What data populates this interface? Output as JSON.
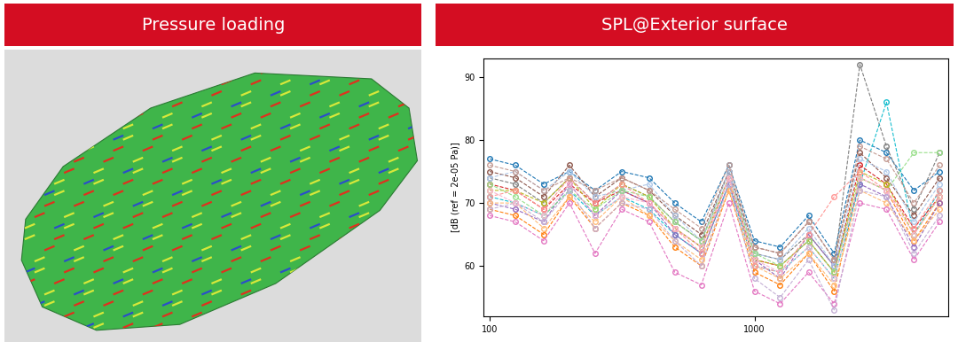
{
  "chart_data": [
    {
      "type": "image",
      "title": "Pressure loading"
    },
    {
      "type": "line",
      "title": "SPL@Exterior surface",
      "y_label": "[dB (ref = 2e-05 Pa)]",
      "log": "x",
      "grid": false,
      "marker": "o",
      "line_style": "dashed",
      "x": [
        100,
        125,
        160,
        200,
        250,
        315,
        400,
        500,
        630,
        800,
        1000,
        1250,
        1600,
        2000,
        2500,
        3150,
        4000,
        5000
      ],
      "xlim": [
        95,
        5400
      ],
      "xticks": [
        100,
        1000
      ],
      "ylim": [
        52,
        93
      ],
      "yticks": [
        60,
        70,
        80,
        90
      ],
      "series": [
        {
          "color": "#1f77b4",
          "values": [
            77,
            76,
            73,
            75,
            72,
            75,
            74,
            70,
            67,
            76,
            64,
            63,
            68,
            62,
            80,
            78,
            72,
            75
          ]
        },
        {
          "color": "#ff7f0e",
          "values": [
            69,
            68,
            65,
            71,
            66,
            70,
            68,
            63,
            60,
            72,
            59,
            57,
            62,
            56,
            74,
            72,
            64,
            70
          ]
        },
        {
          "color": "#7f7f7f",
          "values": [
            74,
            73,
            70,
            74,
            70,
            73,
            71,
            67,
            64,
            75,
            62,
            61,
            65,
            60,
            92,
            79,
            69,
            78
          ]
        },
        {
          "color": "#17becf",
          "values": [
            71,
            70,
            68,
            72,
            68,
            71,
            69,
            65,
            62,
            73,
            60,
            59,
            63,
            58,
            73,
            86,
            65,
            72
          ]
        },
        {
          "color": "#d62728",
          "values": [
            73,
            72,
            69,
            73,
            70,
            72,
            70,
            66,
            63,
            74,
            61,
            60,
            64,
            59,
            76,
            73,
            66,
            71
          ]
        },
        {
          "color": "#9467bd",
          "values": [
            70,
            69,
            67,
            73,
            68,
            72,
            70,
            65,
            62,
            73,
            61,
            58,
            65,
            60,
            73,
            71,
            63,
            70
          ]
        },
        {
          "color": "#8c564b",
          "values": [
            75,
            74,
            71,
            76,
            71,
            74,
            72,
            68,
            65,
            75,
            63,
            62,
            67,
            61,
            78,
            74,
            68,
            74
          ]
        },
        {
          "color": "#e377c2",
          "values": [
            68,
            67,
            64,
            70,
            62,
            69,
            67,
            59,
            57,
            70,
            56,
            54,
            59,
            54,
            70,
            69,
            61,
            67
          ]
        },
        {
          "color": "#bcbd22",
          "values": [
            72,
            72,
            70,
            74,
            69,
            73,
            71,
            66,
            63,
            74,
            61,
            60,
            64,
            59,
            75,
            73,
            65,
            71
          ]
        },
        {
          "color": "#aec7e8",
          "values": [
            74,
            75,
            72,
            75,
            71,
            72,
            73,
            68,
            64,
            75,
            62,
            61,
            66,
            60,
            77,
            75,
            67,
            73
          ]
        },
        {
          "color": "#ffbb78",
          "values": [
            70,
            70,
            66,
            71,
            67,
            71,
            68,
            64,
            61,
            72,
            60,
            58,
            62,
            57,
            72,
            70,
            64,
            69
          ]
        },
        {
          "color": "#98df8a",
          "values": [
            73,
            71,
            68,
            72,
            69,
            72,
            71,
            67,
            64,
            74,
            62,
            60,
            64,
            59,
            74,
            72,
            78,
            78
          ]
        },
        {
          "color": "#ff9896",
          "values": [
            71,
            72,
            69,
            74,
            70,
            73,
            70,
            66,
            62,
            74,
            60,
            59,
            65,
            71,
            75,
            72,
            66,
            72
          ]
        },
        {
          "color": "#c5b0d5",
          "values": [
            69,
            70,
            67,
            72,
            66,
            70,
            69,
            64,
            60,
            73,
            58,
            55,
            61,
            53,
            72,
            71,
            62,
            68
          ]
        },
        {
          "color": "#c49c94",
          "values": [
            76,
            75,
            72,
            74,
            72,
            74,
            72,
            69,
            66,
            76,
            63,
            62,
            67,
            61,
            79,
            77,
            70,
            76
          ]
        },
        {
          "color": "#f7b6d2",
          "values": [
            72,
            70,
            68,
            73,
            68,
            71,
            70,
            66,
            63,
            74,
            61,
            59,
            63,
            58,
            74,
            72,
            65,
            71
          ]
        }
      ]
    }
  ]
}
